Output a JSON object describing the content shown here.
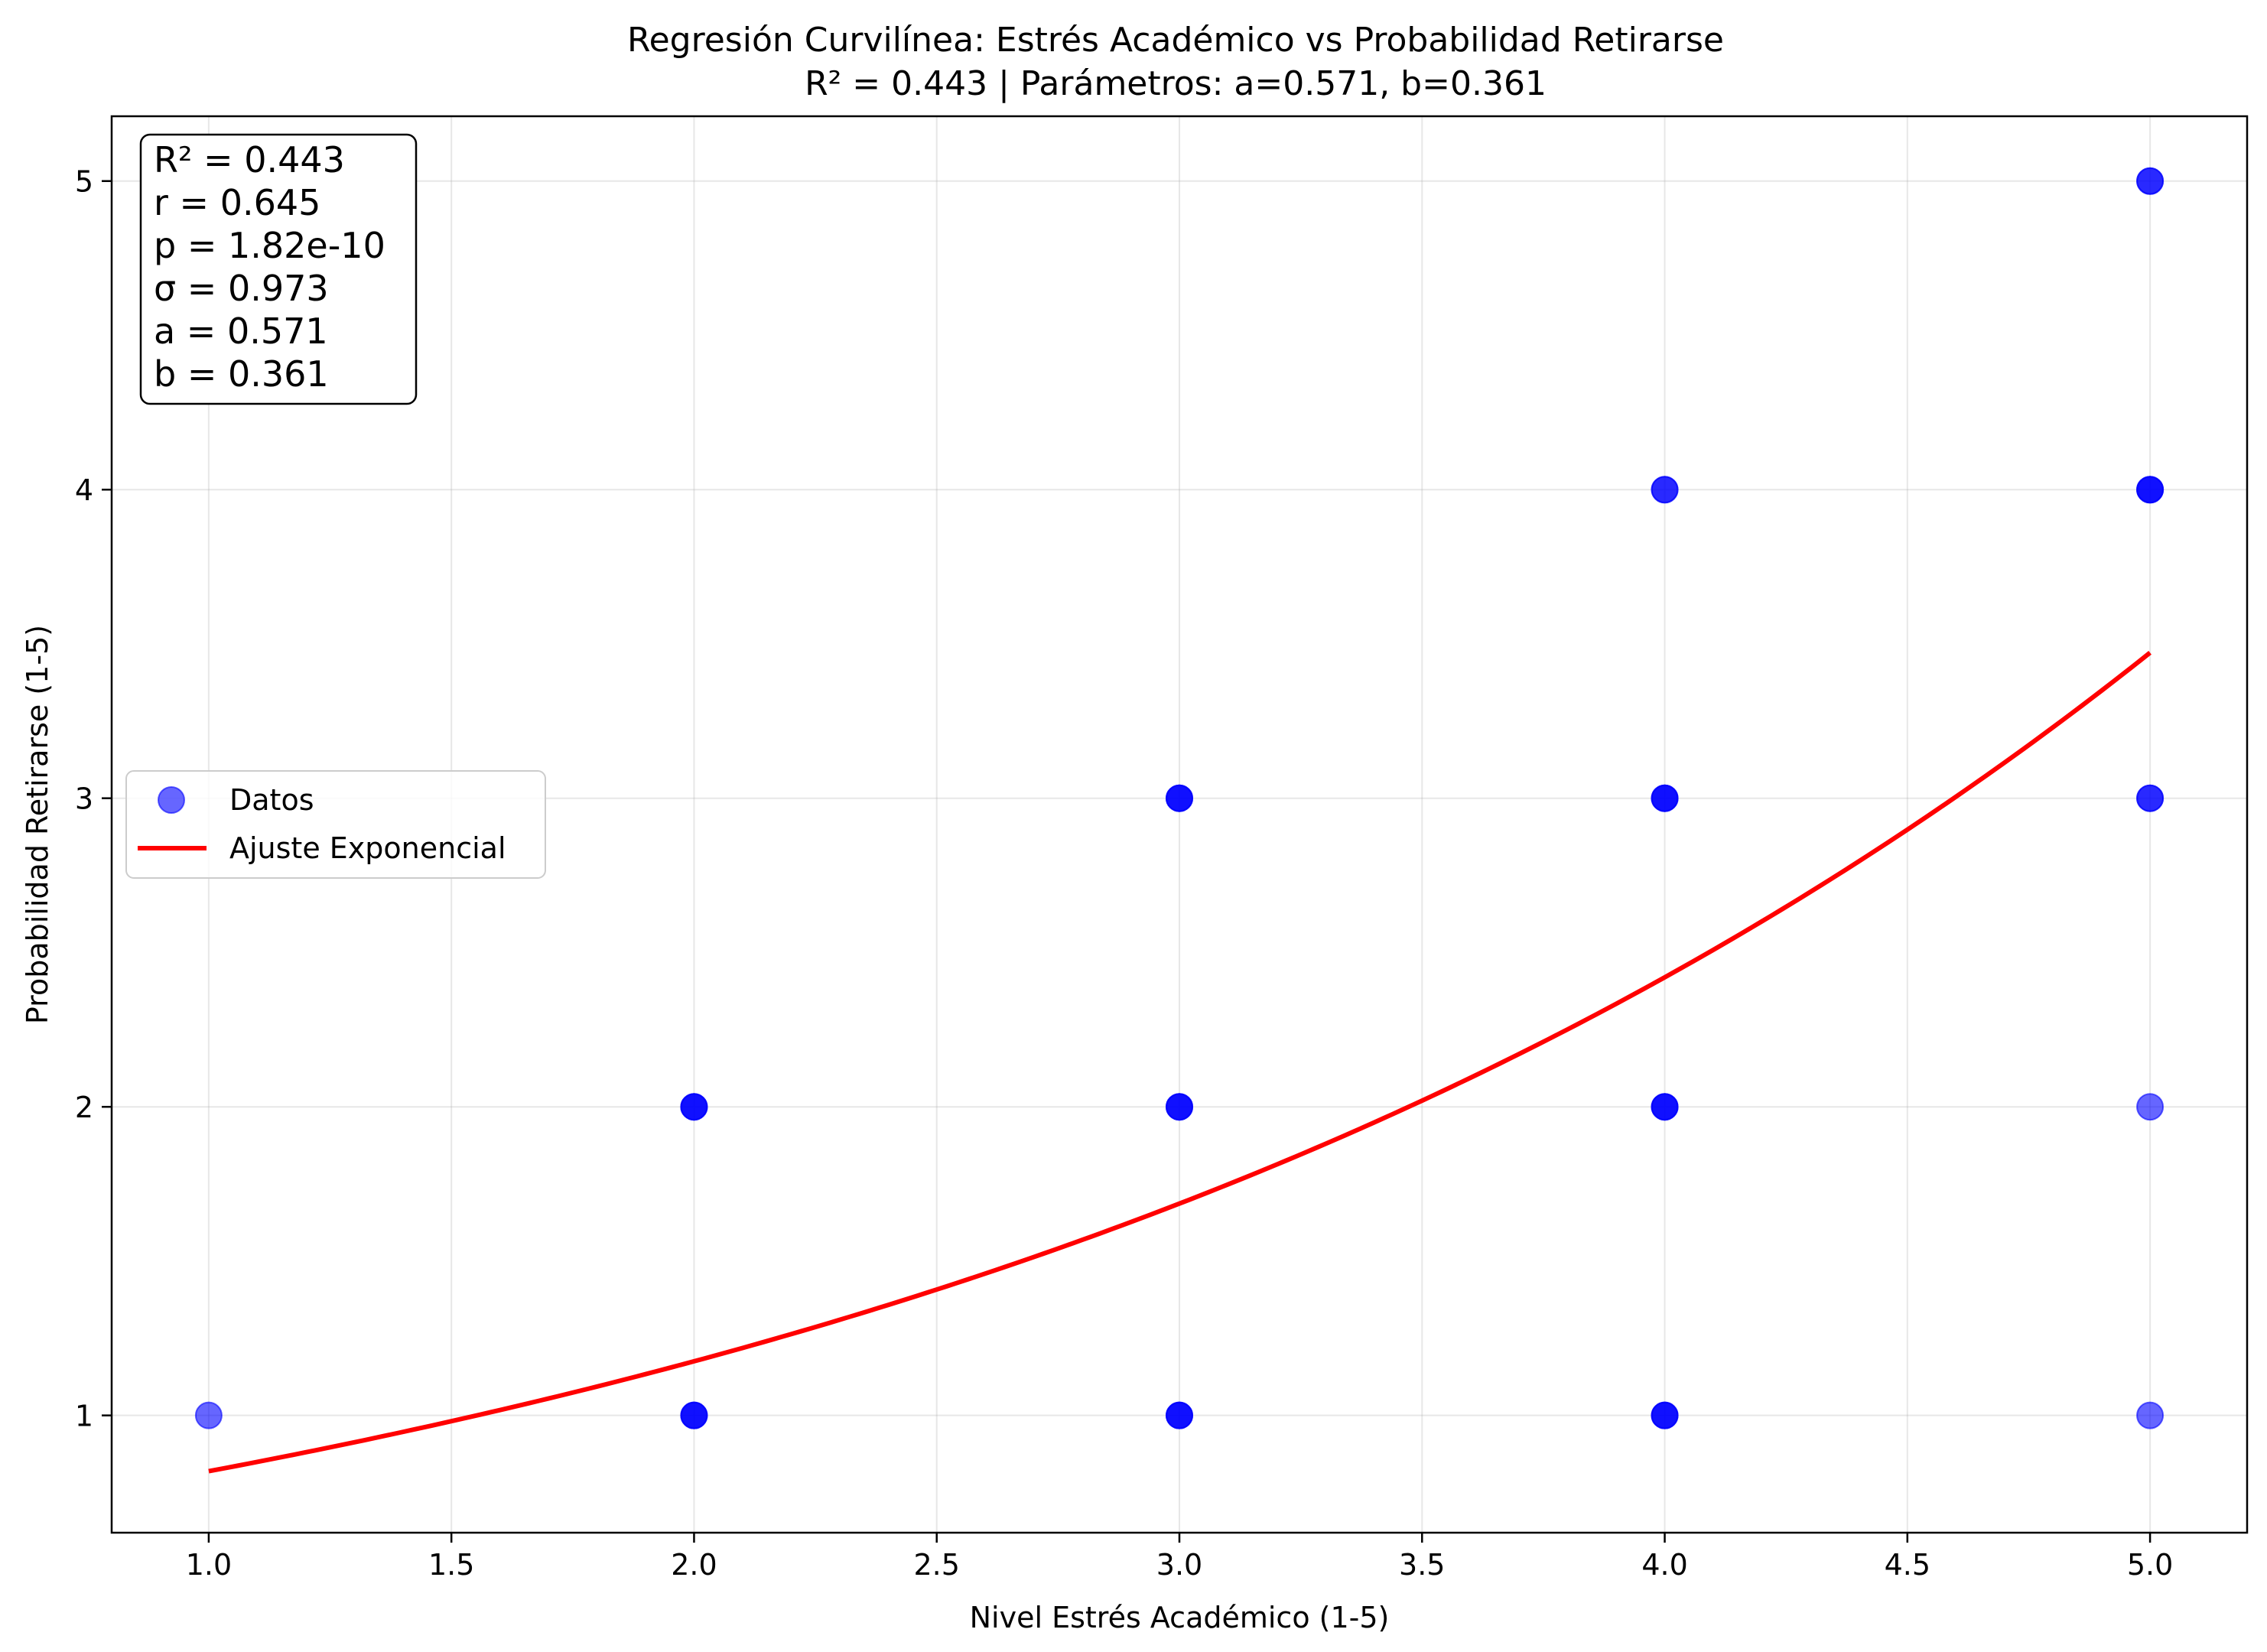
{
  "chart_data": {
    "type": "scatter",
    "title": "Regresión Curvilínea: Estrés Académico vs Probabilidad Retirarse",
    "subtitle": "R² = 0.443 | Parámetros: a=0.571, b=0.361",
    "xlabel": "Nivel Estrés Académico (1-5)",
    "ylabel": "Probabilidad Retirarse (1-5)",
    "xlim": [
      0.8,
      5.2
    ],
    "ylim": [
      0.62,
      5.21
    ],
    "xticks": [
      1.0,
      1.5,
      2.0,
      2.5,
      3.0,
      3.5,
      4.0,
      4.5,
      5.0
    ],
    "xtick_labels": [
      "1.0",
      "1.5",
      "2.0",
      "2.5",
      "3.0",
      "3.5",
      "4.0",
      "4.5",
      "5.0"
    ],
    "yticks": [
      1,
      2,
      3,
      4,
      5
    ],
    "ytick_labels": [
      "1",
      "2",
      "3",
      "4",
      "5"
    ],
    "grid": true,
    "legend_position": "center-left",
    "series": [
      {
        "name": "Datos",
        "kind": "scatter",
        "color": "#0000ff",
        "points": [
          {
            "x": 1,
            "y": 1,
            "count": 1
          },
          {
            "x": 2,
            "y": 1,
            "count": 3
          },
          {
            "x": 2,
            "y": 2,
            "count": 3
          },
          {
            "x": 3,
            "y": 1,
            "count": 3
          },
          {
            "x": 3,
            "y": 2,
            "count": 3
          },
          {
            "x": 3,
            "y": 3,
            "count": 3
          },
          {
            "x": 4,
            "y": 1,
            "count": 3
          },
          {
            "x": 4,
            "y": 2,
            "count": 3
          },
          {
            "x": 4,
            "y": 3,
            "count": 3
          },
          {
            "x": 4,
            "y": 4,
            "count": 2
          },
          {
            "x": 5,
            "y": 1,
            "count": 1
          },
          {
            "x": 5,
            "y": 2,
            "count": 1
          },
          {
            "x": 5,
            "y": 3,
            "count": 2
          },
          {
            "x": 5,
            "y": 4,
            "count": 3
          },
          {
            "x": 5,
            "y": 5,
            "count": 2
          }
        ]
      },
      {
        "name": "Ajuste Exponencial",
        "kind": "line",
        "color": "#ff0000",
        "model": "a*exp(b*x)",
        "a": 0.571,
        "b": 0.361,
        "x_range": [
          1.0,
          5.0
        ]
      }
    ],
    "stats_box": [
      "R² = 0.443",
      "r = 0.645",
      "p = 1.82e-10",
      "σ = 0.973",
      "a = 0.571",
      "b = 0.361"
    ]
  }
}
